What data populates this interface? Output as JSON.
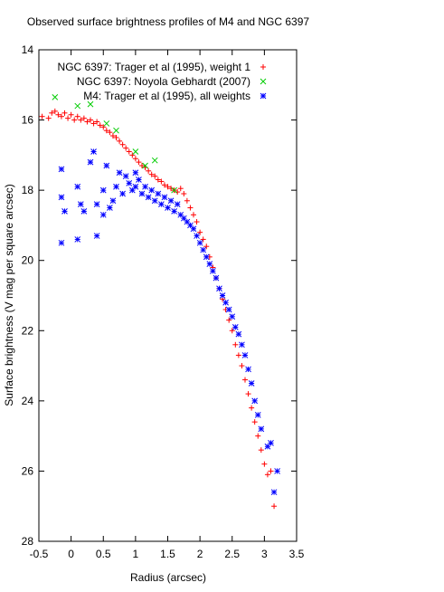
{
  "chart_data": {
    "type": "scatter",
    "title": "Observed surface brightness profiles of M4 and NGC 6397",
    "xlabel": "Radius (arcsec)",
    "ylabel": "Surface brightness (V mag per square arcsec)",
    "xlim": [
      -0.5,
      3.5
    ],
    "ylim": [
      28,
      14
    ],
    "y_inverted": true,
    "x_ticks": [
      "-0.5",
      "0",
      "0.5",
      "1",
      "1.5",
      "2",
      "2.5",
      "3",
      "3.5"
    ],
    "y_ticks": [
      "14",
      "16",
      "18",
      "20",
      "22",
      "24",
      "26",
      "28"
    ],
    "grid": false,
    "legend_position": "top-right",
    "series": [
      {
        "name": "NGC 6397: Trager et al (1995), weight 1",
        "marker": "plus",
        "color": "#ff0000",
        "points": [
          [
            -0.45,
            15.9
          ],
          [
            -0.35,
            15.95
          ],
          [
            -0.3,
            15.8
          ],
          [
            -0.25,
            15.75
          ],
          [
            -0.2,
            15.85
          ],
          [
            -0.15,
            15.9
          ],
          [
            -0.1,
            15.8
          ],
          [
            -0.05,
            15.95
          ],
          [
            0.0,
            15.85
          ],
          [
            0.05,
            16.0
          ],
          [
            0.1,
            15.9
          ],
          [
            0.15,
            16.0
          ],
          [
            0.2,
            15.95
          ],
          [
            0.25,
            16.05
          ],
          [
            0.3,
            16.0
          ],
          [
            0.35,
            16.1
          ],
          [
            0.4,
            16.05
          ],
          [
            0.45,
            16.15
          ],
          [
            0.5,
            16.2
          ],
          [
            0.55,
            16.3
          ],
          [
            0.6,
            16.35
          ],
          [
            0.65,
            16.45
          ],
          [
            0.7,
            16.5
          ],
          [
            0.75,
            16.6
          ],
          [
            0.8,
            16.7
          ],
          [
            0.85,
            16.8
          ],
          [
            0.9,
            16.9
          ],
          [
            0.95,
            17.0
          ],
          [
            1.0,
            17.1
          ],
          [
            1.05,
            17.2
          ],
          [
            1.1,
            17.3
          ],
          [
            1.15,
            17.35
          ],
          [
            1.2,
            17.45
          ],
          [
            1.25,
            17.55
          ],
          [
            1.3,
            17.6
          ],
          [
            1.35,
            17.7
          ],
          [
            1.4,
            17.75
          ],
          [
            1.45,
            17.85
          ],
          [
            1.5,
            17.9
          ],
          [
            1.55,
            17.95
          ],
          [
            1.6,
            18.0
          ],
          [
            1.65,
            18.05
          ],
          [
            1.7,
            17.95
          ],
          [
            1.75,
            18.1
          ],
          [
            1.8,
            18.3
          ],
          [
            1.85,
            18.5
          ],
          [
            1.9,
            18.7
          ],
          [
            1.95,
            18.9
          ],
          [
            2.0,
            19.2
          ],
          [
            2.05,
            19.4
          ],
          [
            2.1,
            19.6
          ],
          [
            2.15,
            19.9
          ],
          [
            2.2,
            20.2
          ],
          [
            2.25,
            20.5
          ],
          [
            2.3,
            20.8
          ],
          [
            2.35,
            21.1
          ],
          [
            2.4,
            21.4
          ],
          [
            2.45,
            21.7
          ],
          [
            2.5,
            22.0
          ],
          [
            2.55,
            22.4
          ],
          [
            2.6,
            22.7
          ],
          [
            2.65,
            23.0
          ],
          [
            2.7,
            23.4
          ],
          [
            2.75,
            23.8
          ],
          [
            2.8,
            24.2
          ],
          [
            2.85,
            24.6
          ],
          [
            2.9,
            25.0
          ],
          [
            2.95,
            25.4
          ],
          [
            3.0,
            25.8
          ],
          [
            3.05,
            26.1
          ],
          [
            3.1,
            26.0
          ],
          [
            3.15,
            27.0
          ]
        ]
      },
      {
        "name": "NGC 6397: Noyola  Gebhardt (2007)",
        "marker": "cross",
        "color": "#00cc00",
        "points": [
          [
            -0.25,
            15.35
          ],
          [
            0.1,
            15.6
          ],
          [
            0.3,
            15.55
          ],
          [
            0.55,
            16.1
          ],
          [
            0.7,
            16.3
          ],
          [
            1.0,
            16.9
          ],
          [
            1.15,
            17.3
          ],
          [
            1.3,
            17.15
          ],
          [
            1.6,
            18.0
          ]
        ]
      },
      {
        "name": "M4: Trager et al (1995), all weights",
        "marker": "star",
        "color": "#0000ff",
        "points": [
          [
            -0.15,
            17.4
          ],
          [
            -0.15,
            18.2
          ],
          [
            -0.15,
            19.5
          ],
          [
            -0.1,
            18.6
          ],
          [
            0.1,
            17.9
          ],
          [
            0.1,
            19.4
          ],
          [
            0.15,
            18.4
          ],
          [
            0.2,
            18.6
          ],
          [
            0.3,
            17.2
          ],
          [
            0.35,
            16.9
          ],
          [
            0.4,
            18.4
          ],
          [
            0.4,
            19.3
          ],
          [
            0.5,
            18.0
          ],
          [
            0.5,
            18.7
          ],
          [
            0.55,
            17.3
          ],
          [
            0.6,
            18.5
          ],
          [
            0.65,
            18.3
          ],
          [
            0.7,
            17.9
          ],
          [
            0.75,
            17.5
          ],
          [
            0.8,
            18.1
          ],
          [
            0.85,
            17.6
          ],
          [
            0.9,
            17.8
          ],
          [
            0.95,
            18.0
          ],
          [
            1.0,
            17.5
          ],
          [
            1.0,
            17.9
          ],
          [
            1.05,
            17.7
          ],
          [
            1.1,
            18.1
          ],
          [
            1.15,
            17.9
          ],
          [
            1.2,
            18.2
          ],
          [
            1.25,
            18.0
          ],
          [
            1.3,
            18.3
          ],
          [
            1.35,
            18.1
          ],
          [
            1.4,
            18.4
          ],
          [
            1.45,
            18.2
          ],
          [
            1.5,
            18.5
          ],
          [
            1.55,
            18.3
          ],
          [
            1.6,
            18.6
          ],
          [
            1.65,
            18.4
          ],
          [
            1.7,
            18.7
          ],
          [
            1.75,
            18.8
          ],
          [
            1.8,
            18.9
          ],
          [
            1.85,
            19.0
          ],
          [
            1.9,
            19.1
          ],
          [
            1.95,
            19.3
          ],
          [
            2.0,
            19.5
          ],
          [
            2.05,
            19.7
          ],
          [
            2.1,
            19.9
          ],
          [
            2.15,
            20.1
          ],
          [
            2.2,
            20.3
          ],
          [
            2.25,
            20.5
          ],
          [
            2.3,
            20.8
          ],
          [
            2.35,
            21.0
          ],
          [
            2.4,
            21.2
          ],
          [
            2.45,
            21.4
          ],
          [
            2.5,
            21.6
          ],
          [
            2.55,
            21.9
          ],
          [
            2.6,
            22.1
          ],
          [
            2.65,
            22.4
          ],
          [
            2.7,
            22.7
          ],
          [
            2.75,
            23.1
          ],
          [
            2.8,
            23.5
          ],
          [
            2.85,
            24.0
          ],
          [
            2.9,
            24.4
          ],
          [
            2.95,
            24.8
          ],
          [
            3.05,
            25.3
          ],
          [
            3.1,
            25.2
          ],
          [
            3.15,
            26.6
          ],
          [
            3.2,
            26.0
          ]
        ]
      }
    ]
  }
}
